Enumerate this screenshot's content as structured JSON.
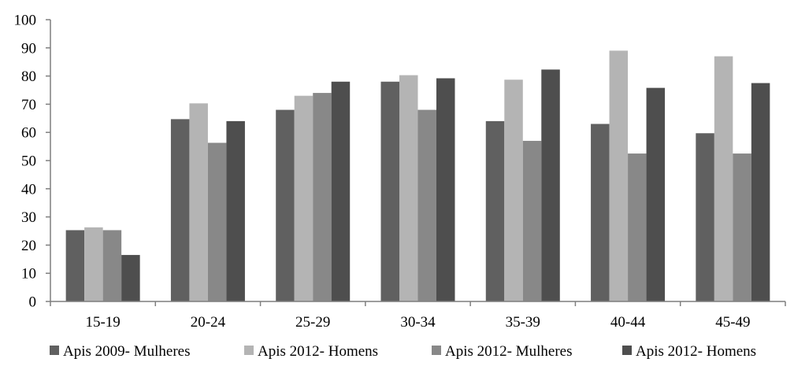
{
  "chart_data": {
    "type": "bar",
    "title": "",
    "xlabel": "",
    "ylabel": "",
    "ylim": [
      0,
      100
    ],
    "yticks": [
      0,
      10,
      20,
      30,
      40,
      50,
      60,
      70,
      80,
      90,
      100
    ],
    "grid": false,
    "legend_position": "bottom",
    "categories": [
      "15-19",
      "20-24",
      "25-29",
      "30-34",
      "35-39",
      "40-44",
      "45-49"
    ],
    "series": [
      {
        "name": "Apis 2009- Mulheres",
        "color": "#606060",
        "values": [
          25.3,
          64.7,
          68.0,
          78.0,
          64.0,
          63.0,
          59.7
        ]
      },
      {
        "name": "Apis 2012- Homens",
        "color": "#b4b4b4",
        "values": [
          26.3,
          70.3,
          73.0,
          80.3,
          78.7,
          89.0,
          87.0
        ]
      },
      {
        "name": "Apis 2012- Mulheres",
        "color": "#888888",
        "values": [
          25.3,
          56.3,
          74.0,
          68.0,
          57.0,
          52.5,
          52.5
        ]
      },
      {
        "name": "Apis 2012- Homens",
        "color": "#4e4e4e",
        "values": [
          16.5,
          64.0,
          78.0,
          79.2,
          82.3,
          75.8,
          77.5
        ]
      }
    ]
  }
}
